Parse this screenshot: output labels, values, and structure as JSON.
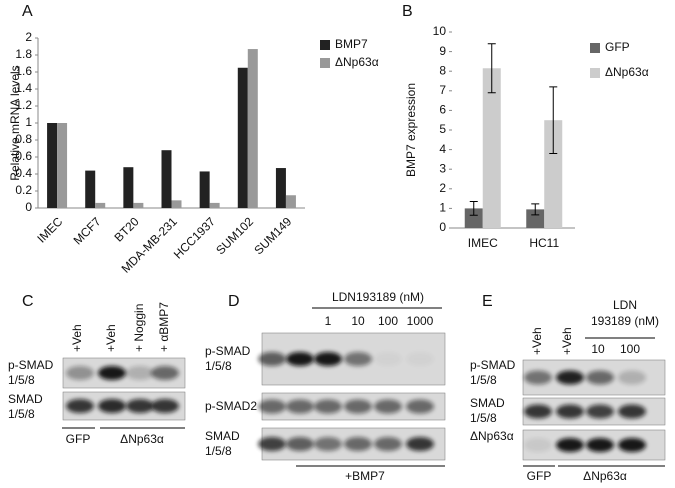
{
  "chart_data": [
    {
      "type": "bar",
      "label": "A",
      "ylabel": "Relative mRNA levels",
      "categories": [
        "IMEC",
        "MCF7",
        "BT20",
        "MDA-MB-231",
        "HCC1937",
        "SUM102",
        "SUM149"
      ],
      "series": [
        {
          "name": "BMP7",
          "color": "#222222",
          "values": [
            1,
            0.44,
            0.48,
            0.68,
            0.43,
            1.65,
            0.47
          ]
        },
        {
          "name": "ΔNp63α",
          "color": "#999999",
          "values": [
            1,
            0.06,
            0.06,
            0.09,
            0.06,
            1.87,
            0.15
          ]
        }
      ],
      "ylim": [
        0,
        2
      ],
      "yticks": [
        0,
        0.2,
        0.4,
        0.6,
        0.8,
        1,
        1.2,
        1.4,
        1.6,
        1.8,
        2
      ]
    },
    {
      "type": "bar",
      "label": "B",
      "ylabel": "BMP7 expression",
      "categories": [
        "IMEC",
        "HC11"
      ],
      "series": [
        {
          "name": "GFP",
          "color": "#666666",
          "values": [
            1,
            0.95
          ],
          "errors": [
            0.35,
            0.28
          ]
        },
        {
          "name": "ΔNp63α",
          "color": "#cccccc",
          "values": [
            8.15,
            5.5
          ],
          "errors": [
            1.25,
            1.7
          ]
        }
      ],
      "ylim": [
        0,
        10
      ],
      "yticks": [
        0,
        1,
        2,
        3,
        4,
        5,
        6,
        7,
        8,
        9,
        10
      ]
    }
  ],
  "blots": [
    {
      "label": "C",
      "lanes": [
        "+Veh",
        "+Veh",
        "+ Noggin",
        "+ αBMP7"
      ],
      "rows": [
        [
          "p-SMAD",
          "1/5/8"
        ],
        [
          "SMAD",
          "1/5/8"
        ]
      ],
      "groups": [
        "GFP",
        "ΔNp63α"
      ]
    },
    {
      "label": "D",
      "treatment": "LDN193189 (nM)",
      "doses": [
        "1",
        "10",
        "100",
        "1000"
      ],
      "rows": [
        [
          "p-SMAD",
          "1/5/8"
        ],
        [
          "p-SMAD2"
        ],
        [
          "SMAD",
          "1/5/8"
        ]
      ],
      "groups": [
        "+BMP7"
      ]
    },
    {
      "label": "E",
      "lanes": [
        "+Veh",
        "+Veh"
      ],
      "treatment": [
        "LDN",
        "193189 (nM)"
      ],
      "doses": [
        "10",
        "100"
      ],
      "rows": [
        [
          "p-SMAD",
          "1/5/8"
        ],
        [
          "SMAD",
          "1/5/8"
        ],
        [
          "ΔNp63α"
        ]
      ],
      "groups": [
        "GFP",
        "ΔNp63α"
      ]
    }
  ]
}
